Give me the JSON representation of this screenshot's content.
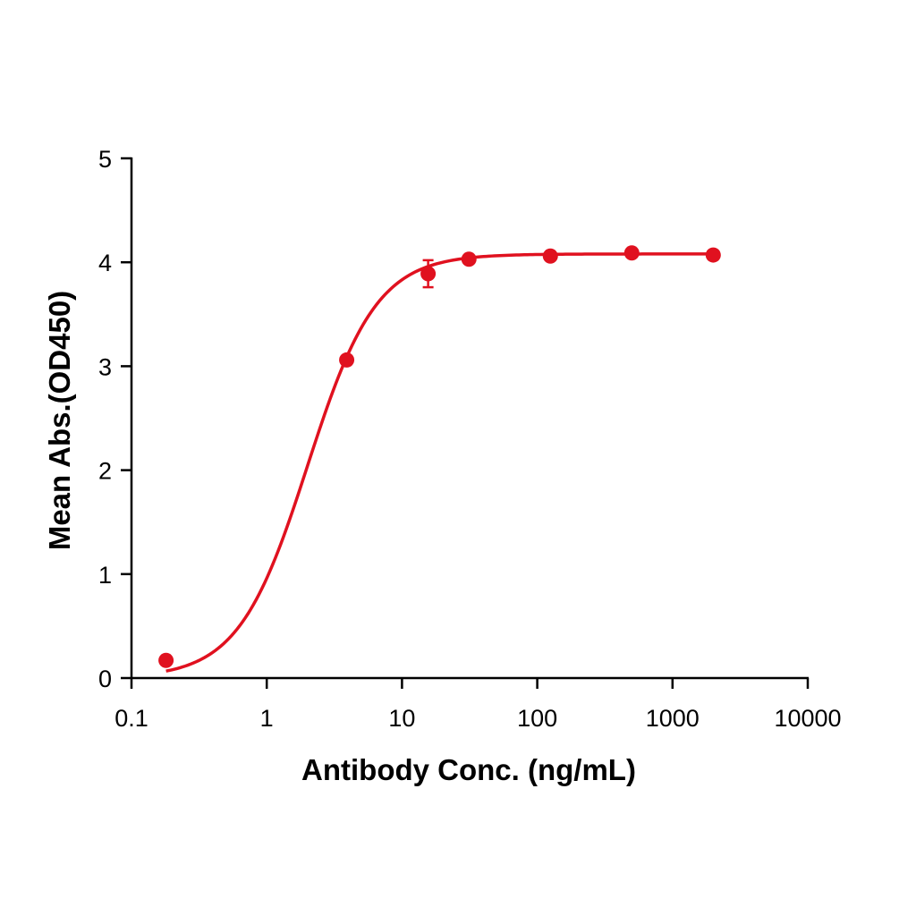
{
  "chart_data": {
    "type": "scatter",
    "title": "",
    "xlabel": "Antibody Conc. (ng/mL)",
    "ylabel": "Mean Abs.(OD450)",
    "x_scale": "log",
    "xlim": [
      0.1,
      10000
    ],
    "ylim": [
      0,
      5
    ],
    "x_ticks": [
      0.1,
      1,
      10,
      100,
      1000,
      10000
    ],
    "x_tick_labels": [
      "0.1",
      "1",
      "10",
      "100",
      "1000",
      "10000"
    ],
    "y_ticks": [
      0,
      1,
      2,
      3,
      4,
      5
    ],
    "y_tick_labels": [
      "0",
      "1",
      "2",
      "3",
      "4",
      "5"
    ],
    "grid": false,
    "legend": "none",
    "color": "#e0111f",
    "series": [
      {
        "x": [
          0.18,
          3.9,
          15.6,
          31.25,
          125,
          500,
          2000
        ],
        "y": [
          0.17,
          3.06,
          3.89,
          4.03,
          4.06,
          4.09,
          4.07
        ],
        "error": [
          0,
          0,
          0.13,
          0,
          0,
          0,
          0
        ],
        "fit": {
          "model": "4PL",
          "bottom": 0.0,
          "top": 4.08,
          "ec50": 2.0,
          "hill": 1.7
        }
      }
    ]
  }
}
